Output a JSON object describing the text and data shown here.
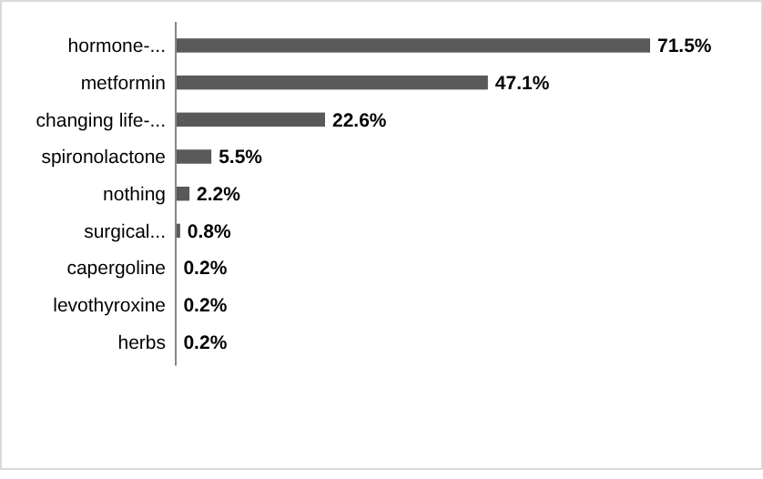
{
  "chart_data": {
    "type": "bar",
    "orientation": "horizontal",
    "categories": [
      "hormone-...",
      "metformin",
      "changing life-...",
      "spironolactone",
      "nothing",
      "surgical...",
      "capergoline",
      "levothyroxine",
      "herbs"
    ],
    "values": [
      71.5,
      47.1,
      22.6,
      5.5,
      2.2,
      0.8,
      0.2,
      0.2,
      0.2
    ],
    "value_labels": [
      "71.5%",
      "47.1%",
      "22.6%",
      "5.5%",
      "2.2%",
      "0.8%",
      "0.2%",
      "0.2%",
      "0.2%"
    ],
    "color": "#595959"
  }
}
